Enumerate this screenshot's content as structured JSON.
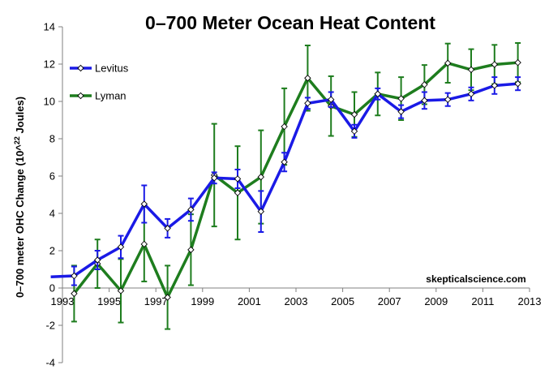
{
  "chart_data": {
    "type": "line",
    "title": "0–700 Meter Ocean Heat Content",
    "ylabel": "0–700 meter OHC Change (10^22 Joules)",
    "xlabel": "",
    "credit": "skepticalscience.com",
    "xlim": [
      1993,
      2013
    ],
    "ylim": [
      -4,
      14
    ],
    "x_ticks": [
      "1993",
      "1995",
      "1997",
      "1999",
      "2001",
      "2003",
      "2005",
      "2007",
      "2009",
      "2011",
      "2013"
    ],
    "y_ticks": [
      "-4",
      "-2",
      "0",
      "2",
      "4",
      "6",
      "8",
      "10",
      "12",
      "14"
    ],
    "legend_position": "top-left",
    "grid": false,
    "series": [
      {
        "name": "Levitus",
        "color": "#1a1ae6",
        "points": [
          {
            "x": 1992.5,
            "y": 0.6,
            "err": null
          },
          {
            "x": 1993.5,
            "y": 0.65,
            "err": 0.5
          },
          {
            "x": 1994.5,
            "y": 1.5,
            "err": 0.5
          },
          {
            "x": 1995.5,
            "y": 2.2,
            "err": 0.6
          },
          {
            "x": 1996.5,
            "y": 4.5,
            "err": 1.0
          },
          {
            "x": 1997.5,
            "y": 3.2,
            "err": 0.5
          },
          {
            "x": 1998.5,
            "y": 4.2,
            "err": 0.6
          },
          {
            "x": 1999.5,
            "y": 5.9,
            "err": 0.3
          },
          {
            "x": 2000.5,
            "y": 5.85,
            "err": 0.5
          },
          {
            "x": 2001.5,
            "y": 4.1,
            "err": 1.1
          },
          {
            "x": 2002.5,
            "y": 6.75,
            "err": 0.5
          },
          {
            "x": 2003.5,
            "y": 9.9,
            "err": 0.3
          },
          {
            "x": 2004.5,
            "y": 10.1,
            "err": 0.4
          },
          {
            "x": 2005.5,
            "y": 8.4,
            "err": 0.35
          },
          {
            "x": 2006.5,
            "y": 10.4,
            "err": 0.3
          },
          {
            "x": 2007.5,
            "y": 9.45,
            "err": 0.35
          },
          {
            "x": 2008.5,
            "y": 10.05,
            "err": 0.45
          },
          {
            "x": 2009.5,
            "y": 10.1,
            "err": 0.35
          },
          {
            "x": 2010.5,
            "y": 10.4,
            "err": 0.35
          },
          {
            "x": 2011.5,
            "y": 10.85,
            "err": 0.45
          },
          {
            "x": 2012.5,
            "y": 10.95,
            "err": 0.35
          }
        ]
      },
      {
        "name": "Lyman",
        "color": "#1e7d1e",
        "points": [
          {
            "x": 1993.5,
            "y": -0.3,
            "err": 1.5
          },
          {
            "x": 1994.5,
            "y": 1.3,
            "err": 1.3
          },
          {
            "x": 1995.5,
            "y": -0.15,
            "err": 1.7
          },
          {
            "x": 1996.5,
            "y": 2.35,
            "err": 2.0
          },
          {
            "x": 1997.5,
            "y": -0.5,
            "err": 1.7
          },
          {
            "x": 1998.5,
            "y": 2.05,
            "err": 1.9
          },
          {
            "x": 1999.5,
            "y": 6.05,
            "err": 2.75
          },
          {
            "x": 2000.5,
            "y": 5.1,
            "err": 2.5
          },
          {
            "x": 2001.5,
            "y": 5.95,
            "err": 2.5
          },
          {
            "x": 2002.5,
            "y": 8.65,
            "err": 2.05
          },
          {
            "x": 2003.5,
            "y": 11.25,
            "err": 1.75
          },
          {
            "x": 2004.5,
            "y": 9.75,
            "err": 1.6
          },
          {
            "x": 2005.5,
            "y": 9.3,
            "err": 1.2
          },
          {
            "x": 2006.5,
            "y": 10.4,
            "err": 1.15
          },
          {
            "x": 2007.5,
            "y": 10.15,
            "err": 1.15
          },
          {
            "x": 2008.5,
            "y": 10.9,
            "err": 1.05
          },
          {
            "x": 2009.5,
            "y": 12.05,
            "err": 1.05
          },
          {
            "x": 2010.5,
            "y": 11.7,
            "err": 1.1
          },
          {
            "x": 2011.5,
            "y": 11.98,
            "err": 1.05
          },
          {
            "x": 2012.5,
            "y": 12.08,
            "err": 1.05
          }
        ]
      }
    ]
  }
}
